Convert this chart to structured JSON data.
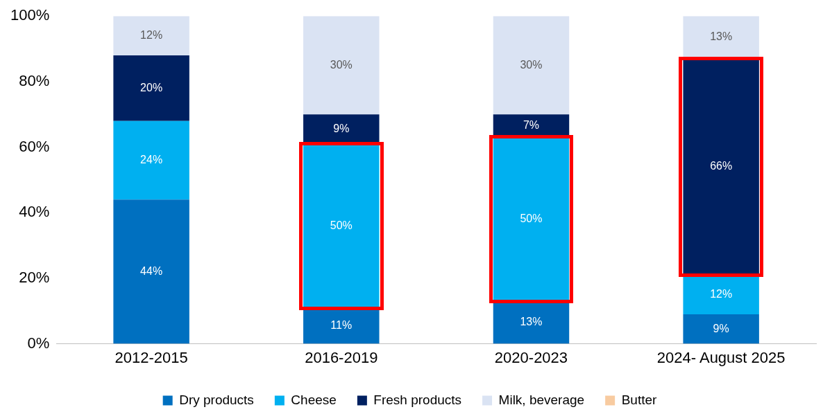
{
  "chart_data": {
    "type": "bar",
    "stacked": true,
    "categories": [
      "2012-2015",
      "2016-2019",
      "2020-2023",
      "2024- August 2025"
    ],
    "series": [
      {
        "name": "Dry products",
        "color": "#0070c0",
        "values": [
          44,
          11,
          13,
          9
        ],
        "value_labels": [
          "44%",
          "11%",
          "13%",
          "9%"
        ]
      },
      {
        "name": "Cheese",
        "color": "#00b0f0",
        "values": [
          24,
          50,
          50,
          12
        ],
        "value_labels": [
          "24%",
          "50%",
          "50%",
          "12%"
        ]
      },
      {
        "name": "Fresh products",
        "color": "#002060",
        "values": [
          20,
          9,
          7,
          66
        ],
        "value_labels": [
          "20%",
          "9%",
          "7%",
          "66%"
        ]
      },
      {
        "name": "Milk, beverage",
        "color": "#dae3f3",
        "values": [
          12,
          30,
          30,
          13
        ],
        "value_labels": [
          "12%",
          "30%",
          "30%",
          "13%"
        ]
      },
      {
        "name": "Butter",
        "color": "#f8cba0",
        "values": [
          0,
          0,
          0,
          0
        ],
        "value_labels": [
          null,
          null,
          null,
          null
        ]
      }
    ],
    "ylim": [
      0,
      100
    ],
    "yticks": [
      {
        "value": 0,
        "label": "0%"
      },
      {
        "value": 20,
        "label": "20%"
      },
      {
        "value": 40,
        "label": "40%"
      },
      {
        "value": 60,
        "label": "60%"
      },
      {
        "value": 80,
        "label": "80%"
      },
      {
        "value": 100,
        "label": "100%"
      }
    ],
    "legend": "bottom"
  }
}
